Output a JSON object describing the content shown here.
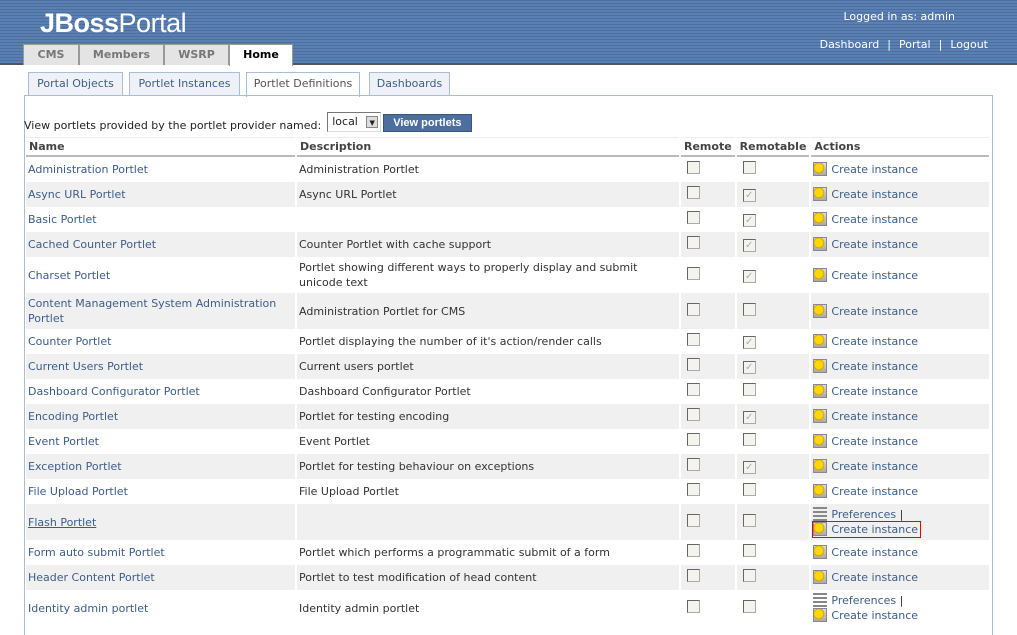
{
  "header": {
    "logo_bold": "JBoss",
    "logo_light": "Portal",
    "logged_in": "Logged in as: admin",
    "links": [
      "Dashboard",
      "Portal",
      "Logout"
    ],
    "separator": "|"
  },
  "main_tabs": [
    {
      "label": "CMS"
    },
    {
      "label": "Members"
    },
    {
      "label": "WSRP"
    },
    {
      "label": "Home",
      "active": true
    }
  ],
  "sub_tabs": [
    {
      "label": "Portal Objects"
    },
    {
      "label": "Portlet Instances"
    },
    {
      "label": "Portlet Definitions",
      "active": true
    },
    {
      "label": "Dashboards"
    }
  ],
  "filter": {
    "label": "View portlets provided by the portlet provider named:",
    "selected": "local",
    "button": "View portlets"
  },
  "table": {
    "columns": [
      "Name",
      "Description",
      "Remote",
      "Remotable",
      "Actions"
    ],
    "action_create": "Create instance",
    "action_prefs": "Preferences",
    "action_sep": "|",
    "rows": [
      {
        "name": "Administration Portlet",
        "desc": "Administration Portlet",
        "remote": false,
        "remotable": false
      },
      {
        "name": "Async URL Portlet",
        "desc": "Async URL Portlet",
        "remote": false,
        "remotable": true
      },
      {
        "name": "Basic Portlet",
        "desc": "",
        "remote": false,
        "remotable": true
      },
      {
        "name": "Cached Counter Portlet",
        "desc": "Counter Portlet with cache support",
        "remote": false,
        "remotable": true
      },
      {
        "name": "Charset Portlet",
        "desc": "Portlet showing different ways to properly display and submit unicode text",
        "remote": false,
        "remotable": true
      },
      {
        "name": "Content Management System Administration Portlet",
        "desc": "Administration Portlet for CMS",
        "remote": false,
        "remotable": false
      },
      {
        "name": "Counter Portlet",
        "desc": "Portlet displaying the number of it's action/render calls",
        "remote": false,
        "remotable": true
      },
      {
        "name": "Current Users Portlet",
        "desc": "Current users portlet",
        "remote": false,
        "remotable": true
      },
      {
        "name": "Dashboard Configurator Portlet",
        "desc": "Dashboard Configurator Portlet",
        "remote": false,
        "remotable": false
      },
      {
        "name": "Encoding Portlet",
        "desc": "Portlet for testing encoding",
        "remote": false,
        "remotable": true
      },
      {
        "name": "Event Portlet",
        "desc": "Event Portlet",
        "remote": false,
        "remotable": false
      },
      {
        "name": "Exception Portlet",
        "desc": "Portlet for testing behaviour on exceptions",
        "remote": false,
        "remotable": true
      },
      {
        "name": "File Upload Portlet",
        "desc": "File Upload Portlet",
        "remote": false,
        "remotable": false
      },
      {
        "name": "Flash Portlet",
        "desc": "",
        "remote": false,
        "remotable": false,
        "preferences": true,
        "hovered": true,
        "focused_create": true
      },
      {
        "name": "Form auto submit Portlet",
        "desc": "Portlet which performs a programmatic submit of a form",
        "remote": false,
        "remotable": false
      },
      {
        "name": "Header Content Portlet",
        "desc": "Portlet to test modification of head content",
        "remote": false,
        "remotable": false
      },
      {
        "name": "Identity admin portlet",
        "desc": "Identity admin portlet",
        "remote": false,
        "remotable": false,
        "preferences": true
      }
    ]
  }
}
